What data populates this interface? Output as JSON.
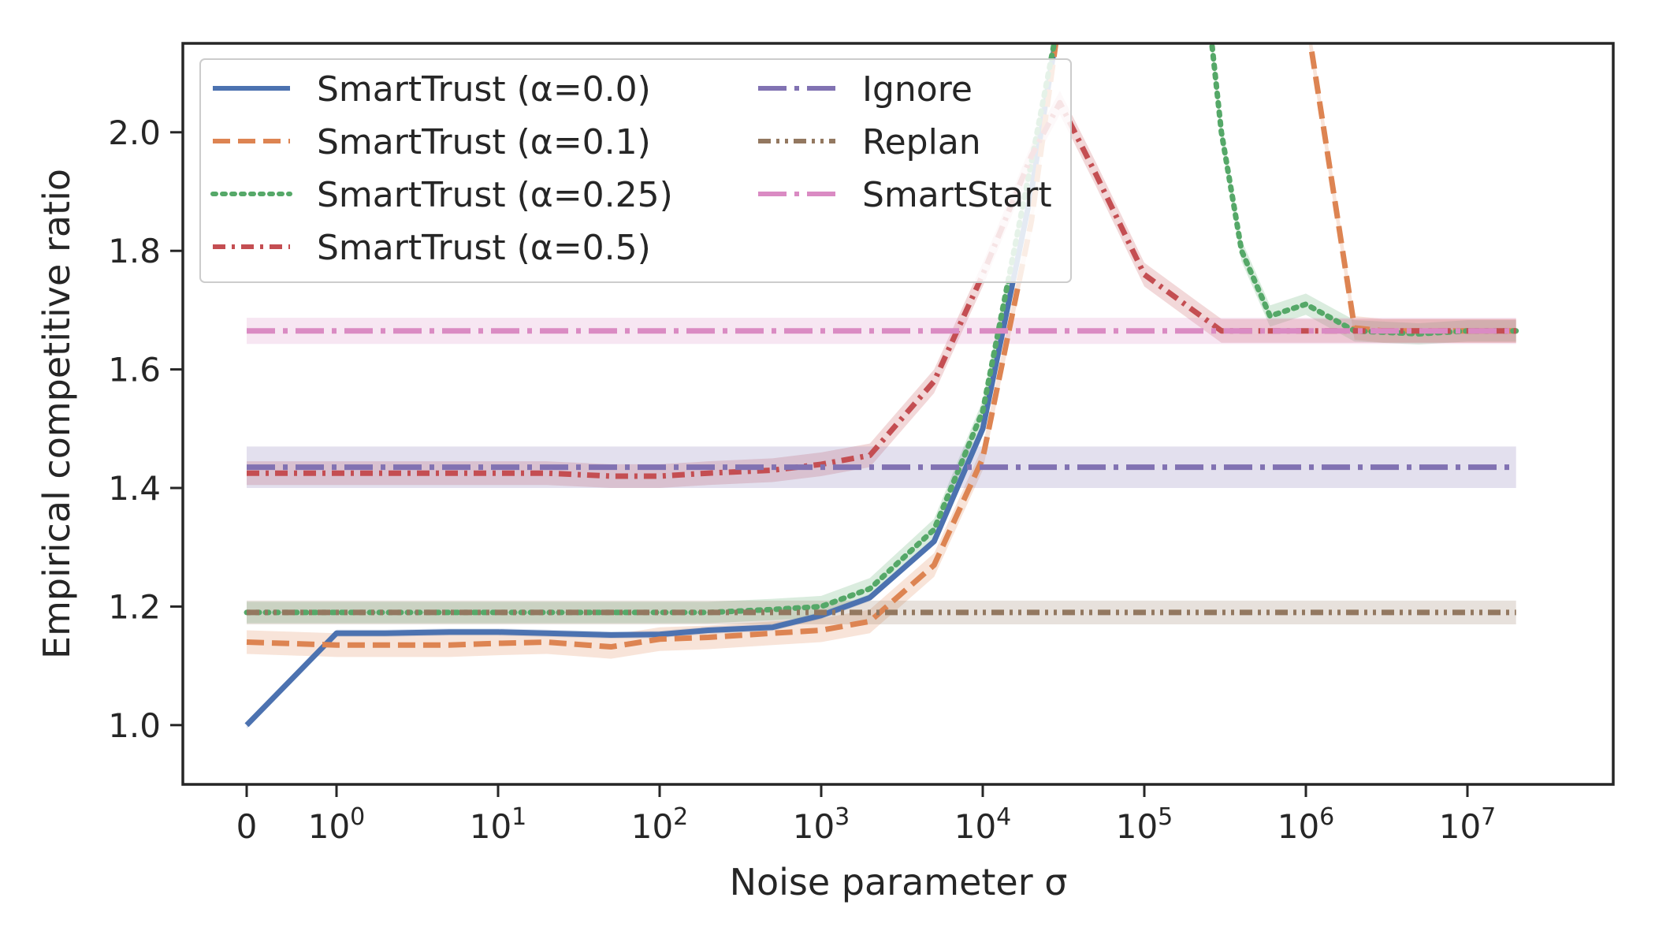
{
  "chart_data": {
    "type": "line",
    "title": "",
    "xlabel": "Noise parameter σ",
    "ylabel": "Empirical competitive ratio",
    "x_scale": "symlog",
    "x_ticks": [
      {
        "value": 0,
        "base": "0",
        "exp": ""
      },
      {
        "value": 1,
        "base": "10",
        "exp": "0"
      },
      {
        "value": 10,
        "base": "10",
        "exp": "1"
      },
      {
        "value": 100,
        "base": "10",
        "exp": "2"
      },
      {
        "value": 1000,
        "base": "10",
        "exp": "3"
      },
      {
        "value": 10000,
        "base": "10",
        "exp": "4"
      },
      {
        "value": 100000,
        "base": "10",
        "exp": "5"
      },
      {
        "value": 1000000,
        "base": "10",
        "exp": "6"
      },
      {
        "value": 10000000,
        "base": "10",
        "exp": "7"
      }
    ],
    "y_ticks": [
      "1.0",
      "1.2",
      "1.4",
      "1.6",
      "1.8",
      "2.0"
    ],
    "ylim": [
      0.9,
      2.15
    ],
    "legend": {
      "placement": "top-left",
      "columns": 2
    },
    "series": [
      {
        "name": "SmartTrust (α=0.0)",
        "color": "#4c72b0",
        "dash": "solid",
        "band": 0.006,
        "x": [
          0,
          1,
          2,
          5,
          10,
          20,
          50,
          100,
          200,
          500,
          1000,
          2000,
          5000,
          10000,
          20000,
          30000
        ],
        "y": [
          1.0,
          1.155,
          1.155,
          1.157,
          1.157,
          1.155,
          1.152,
          1.153,
          1.16,
          1.165,
          1.185,
          1.215,
          1.31,
          1.5,
          1.9,
          2.2
        ]
      },
      {
        "name": "SmartTrust (α=0.1)",
        "color": "#dd8452",
        "dash": "dashed",
        "band": 0.02,
        "x": [
          0,
          1,
          2,
          5,
          10,
          20,
          50,
          100,
          200,
          500,
          1000,
          2000,
          5000,
          10000,
          20000,
          30000,
          1000000,
          1300000,
          2000000,
          3000000,
          10000000,
          20000000
        ],
        "y": [
          1.14,
          1.135,
          1.135,
          1.135,
          1.138,
          1.14,
          1.132,
          1.145,
          1.148,
          1.155,
          1.16,
          1.175,
          1.27,
          1.45,
          1.85,
          2.2,
          2.2,
          2.0,
          1.67,
          1.665,
          1.665,
          1.665
        ]
      },
      {
        "name": "SmartTrust (α=0.25)",
        "color": "#55a868",
        "dash": "dotted",
        "band": 0.018,
        "x": [
          0,
          1,
          2,
          5,
          10,
          20,
          50,
          100,
          200,
          500,
          1000,
          2000,
          5000,
          10000,
          20000,
          30000,
          250000,
          300000,
          400000,
          600000,
          1000000,
          2000000,
          5000000,
          10000000,
          20000000
        ],
        "y": [
          1.19,
          1.19,
          1.19,
          1.19,
          1.19,
          1.19,
          1.19,
          1.19,
          1.19,
          1.195,
          1.2,
          1.23,
          1.33,
          1.53,
          1.95,
          2.2,
          2.2,
          2.0,
          1.8,
          1.69,
          1.71,
          1.665,
          1.66,
          1.665,
          1.665
        ]
      },
      {
        "name": "SmartTrust (α=0.5)",
        "color": "#c44e52",
        "dash": "dashdot",
        "band": 0.02,
        "x": [
          0,
          1,
          2,
          5,
          10,
          20,
          50,
          100,
          200,
          500,
          1000,
          2000,
          5000,
          10000,
          20000,
          30000,
          50000,
          100000,
          200000,
          300000,
          1000000,
          20000000
        ],
        "y": [
          1.425,
          1.425,
          1.425,
          1.425,
          1.425,
          1.425,
          1.42,
          1.42,
          1.425,
          1.43,
          1.44,
          1.455,
          1.58,
          1.76,
          1.96,
          2.05,
          1.93,
          1.76,
          1.7,
          1.665,
          1.665,
          1.665
        ]
      },
      {
        "name": "Ignore",
        "color": "#8172b2",
        "dash": "longdashdot",
        "band": 0.035,
        "x": [
          0,
          20000000
        ],
        "y": [
          1.435,
          1.435
        ]
      },
      {
        "name": "Replan",
        "color": "#937860",
        "dash": "dashdotdot",
        "band": 0.02,
        "x": [
          0,
          20000000
        ],
        "y": [
          1.19,
          1.19
        ]
      },
      {
        "name": "SmartStart",
        "color": "#da8bc3",
        "dash": "longdashdot",
        "band": 0.022,
        "x": [
          0,
          20000000
        ],
        "y": [
          1.665,
          1.665
        ]
      }
    ]
  }
}
